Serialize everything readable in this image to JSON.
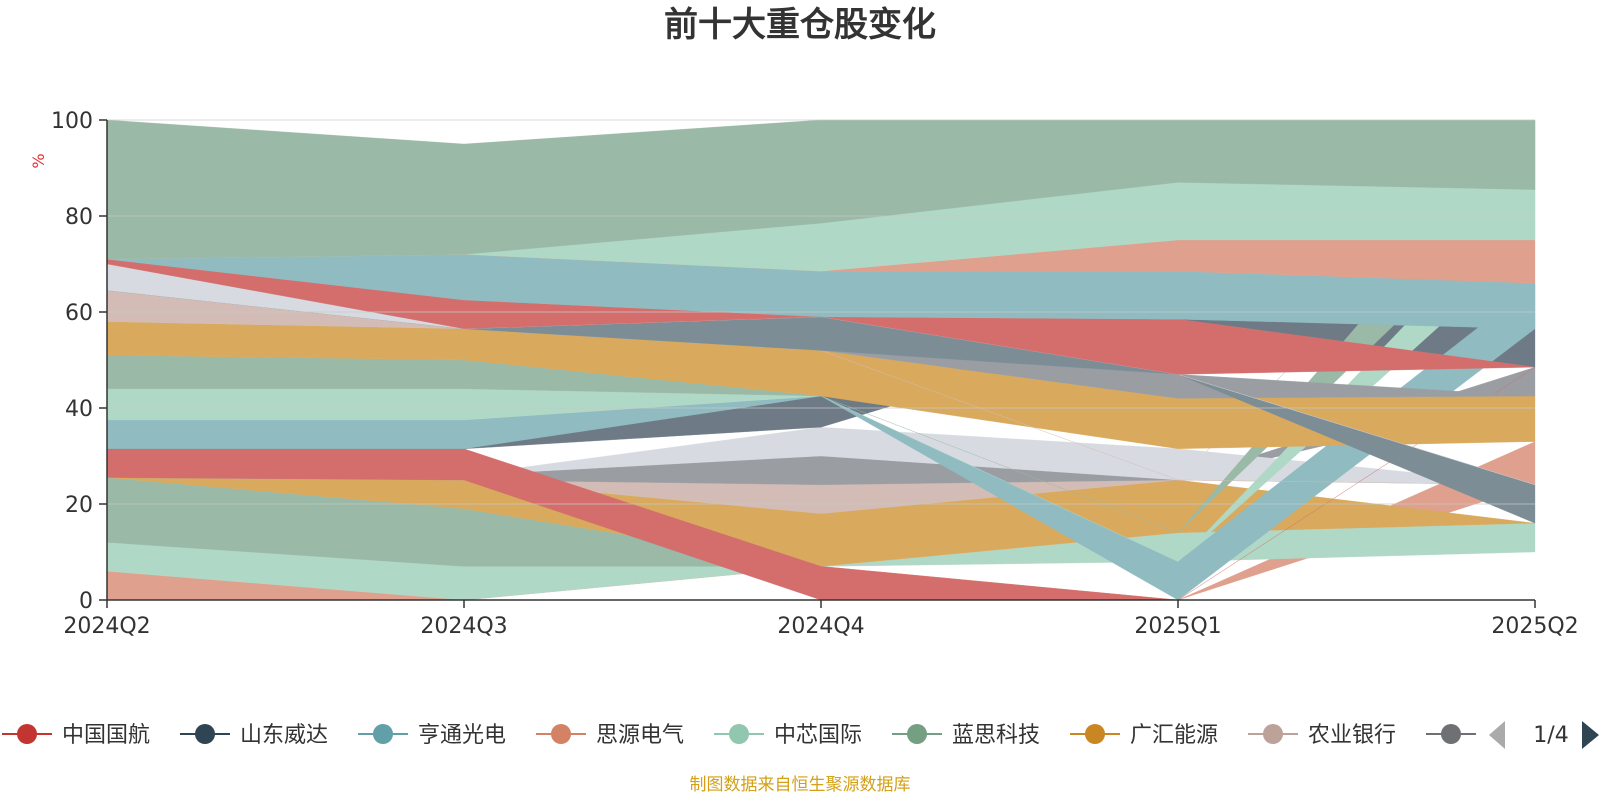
{
  "chart_data": {
    "type": "area",
    "title": "前十大重仓股变化",
    "ylabel": "%",
    "ylim": [
      0,
      100
    ],
    "yticks": [
      0,
      20,
      40,
      60,
      80,
      100
    ],
    "x": [
      "2024Q2",
      "2024Q3",
      "2024Q4",
      "2025Q1",
      "2025Q2"
    ],
    "grid": true,
    "stack": "normalized to 100",
    "bands": [
      {
        "color": "#e0a08e",
        "values": [
          [
            0,
            6
          ],
          [
            0,
            0
          ],
          [
            7,
            7
          ],
          [
            0,
            0
          ],
          [
            24,
            33
          ]
        ]
      },
      {
        "color": "#b0d8c6",
        "values": [
          [
            6,
            12
          ],
          [
            0,
            7
          ],
          [
            7,
            7
          ],
          [
            8,
            14
          ],
          [
            10,
            16
          ]
        ]
      },
      {
        "color": "#9ab9a6",
        "values": [
          [
            12,
            25.5
          ],
          [
            7,
            19
          ],
          [
            7,
            7
          ],
          [
            25,
            25
          ],
          [
            100,
            100
          ]
        ]
      },
      {
        "color": "#d9aa5e",
        "values": [
          [
            25.5,
            25.5
          ],
          [
            19,
            25
          ],
          [
            7,
            18
          ],
          [
            14,
            25
          ],
          [
            16,
            16
          ]
        ]
      },
      {
        "color": "#d4bcb6",
        "values": [
          [
            25.5,
            25.5
          ],
          [
            25,
            25
          ],
          [
            18,
            24
          ],
          [
            25,
            25
          ],
          [
            24,
            24
          ]
        ]
      },
      {
        "color": "#9a9ea3",
        "values": [
          [
            25.5,
            25.5
          ],
          [
            25,
            26
          ],
          [
            24,
            30
          ],
          [
            25,
            25
          ],
          [
            42.5,
            48.5
          ]
        ]
      },
      {
        "color": "#d7dbe1",
        "values": [
          [
            25.5,
            25.5
          ],
          [
            26,
            26
          ],
          [
            30,
            36
          ],
          [
            25,
            31.5
          ],
          [
            24,
            24
          ]
        ]
      },
      {
        "color": "#d46e6c",
        "values": [
          [
            25.5,
            31.5
          ],
          [
            25,
            31.5
          ],
          [
            0,
            7
          ],
          [
            0,
            0
          ],
          [
            48.5,
            48.5
          ]
        ]
      },
      {
        "color": "#6e7b86",
        "values": [
          [
            31.5,
            31.5
          ],
          [
            31.5,
            31.5
          ],
          [
            36,
            42.5
          ],
          [
            58.5,
            58.5
          ],
          [
            48.5,
            56.5
          ]
        ]
      },
      {
        "color": "#8fbbc1",
        "values": [
          [
            31.5,
            37.5
          ],
          [
            31.5,
            37.5
          ],
          [
            42.5,
            42.5
          ],
          [
            0,
            8
          ],
          [
            56.5,
            66
          ]
        ]
      },
      {
        "color": "#b0d8c6",
        "values": [
          [
            37.5,
            44
          ],
          [
            37.5,
            44
          ],
          [
            42.5,
            42.5
          ],
          [
            8,
            8
          ],
          [
            75,
            85.5
          ]
        ]
      },
      {
        "color": "#9ab9a6",
        "values": [
          [
            44,
            51
          ],
          [
            44,
            50
          ],
          [
            42.5,
            42.5
          ],
          [
            14,
            14
          ],
          [
            85.5,
            100
          ]
        ]
      },
      {
        "color": "#d9aa5e",
        "values": [
          [
            51,
            58
          ],
          [
            50,
            56.5
          ],
          [
            42.5,
            52
          ],
          [
            31.5,
            42
          ],
          [
            33,
            42.5
          ]
        ]
      },
      {
        "color": "#d4bcb6",
        "values": [
          [
            58,
            64.5
          ],
          [
            56.5,
            56.5
          ],
          [
            52,
            52
          ],
          [
            25,
            25
          ],
          [
            24,
            24
          ]
        ]
      },
      {
        "color": "#9a9ea3",
        "values": [
          [
            64.5,
            64.5
          ],
          [
            56.5,
            56.5
          ],
          [
            52,
            52
          ],
          [
            42,
            47
          ],
          [
            42.5,
            42.5
          ]
        ]
      },
      {
        "color": "#7d8d96",
        "values": [
          [
            64.5,
            64.5
          ],
          [
            56.5,
            56.5
          ],
          [
            52,
            59
          ],
          [
            47,
            47
          ],
          [
            16,
            24
          ]
        ]
      },
      {
        "color": "#d7dbe1",
        "values": [
          [
            64.5,
            71
          ],
          [
            56.5,
            56.5
          ],
          [
            59,
            59
          ],
          [
            47,
            47
          ],
          [
            24,
            24
          ]
        ]
      },
      {
        "color": "#d46e6c",
        "values": [
          [
            70,
            71
          ],
          [
            56.5,
            62.5
          ],
          [
            59,
            59
          ],
          [
            47,
            58.5
          ],
          [
            48.5,
            48.5
          ]
        ]
      },
      {
        "color": "#8fbbc1",
        "values": [
          [
            71,
            71
          ],
          [
            62.5,
            72
          ],
          [
            59,
            68.5
          ],
          [
            58.5,
            68.5
          ],
          [
            56.5,
            66
          ]
        ]
      },
      {
        "color": "#e0a08e",
        "values": [
          [
            71,
            71
          ],
          [
            72,
            72
          ],
          [
            68.5,
            68.5
          ],
          [
            68.5,
            75
          ],
          [
            66,
            75
          ]
        ]
      },
      {
        "color": "#b0d8c6",
        "values": [
          [
            71,
            71
          ],
          [
            72,
            72
          ],
          [
            68.5,
            78.5
          ],
          [
            75,
            87
          ],
          [
            75,
            85.5
          ]
        ]
      },
      {
        "color": "#9ab9a6",
        "values": [
          [
            71,
            100
          ],
          [
            72,
            95
          ],
          [
            78.5,
            100
          ],
          [
            87,
            100
          ],
          [
            85.5,
            100
          ]
        ]
      }
    ],
    "legend": {
      "position": "bottom",
      "items": [
        {
          "name": "中国国航",
          "color": "#c23531"
        },
        {
          "name": "山东威达",
          "color": "#2f4554"
        },
        {
          "name": "亨通光电",
          "color": "#61a0a8"
        },
        {
          "name": "思源电气",
          "color": "#d48265"
        },
        {
          "name": "中芯国际",
          "color": "#91c7ae"
        },
        {
          "name": "蓝思科技",
          "color": "#749f83"
        },
        {
          "name": "广汇能源",
          "color": "#ca8622"
        },
        {
          "name": "农业银行",
          "color": "#bda29a"
        },
        {
          "name": "",
          "color": "#6e7074"
        }
      ],
      "page": "1/4"
    },
    "footer": "制图数据来自恒生聚源数据库",
    "colors": {
      "axis": "#333333",
      "grid": "#c8c8c8",
      "unit": "#e03030",
      "footer": "#d4a017",
      "pager_active": "#2f4554",
      "pager_inactive": "#aaaaaa"
    }
  }
}
